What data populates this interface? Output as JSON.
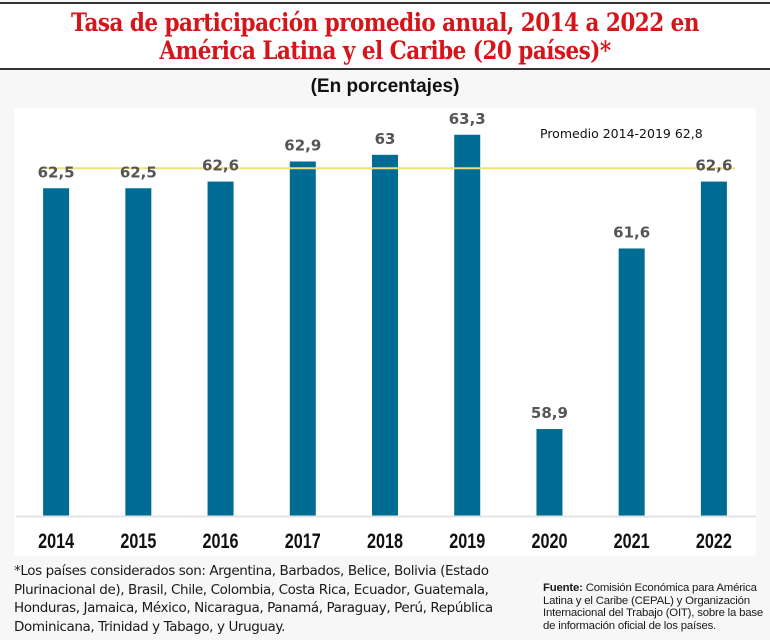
{
  "header": {
    "title_line1": "Tasa de participación promedio anual, 2014 a 2022 en",
    "title_line2": "América Latina y el Caribe (20 países)*",
    "subtitle": "(En porcentajes)"
  },
  "colors": {
    "title": "#d7141a",
    "bar": "#006c93",
    "average_line": "#f0e07a",
    "value_label": "#555555",
    "axis_label": "#111111"
  },
  "chart_data": {
    "type": "bar",
    "title": "Tasa de participación promedio anual, 2014 a 2022 en América Latina y el Caribe (20 países)*",
    "subtitle": "(En porcentajes)",
    "xlabel": "",
    "ylabel": "",
    "categories": [
      "2014",
      "2015",
      "2016",
      "2017",
      "2018",
      "2019",
      "2020",
      "2021",
      "2022"
    ],
    "values": [
      62.5,
      62.5,
      62.6,
      62.9,
      63,
      63.3,
      58.9,
      61.6,
      62.6
    ],
    "value_labels": [
      "62,5",
      "62,5",
      "62,6",
      "62,9",
      "63",
      "63,3",
      "58,9",
      "61,6",
      "62,6"
    ],
    "ylim": [
      57.6,
      63.7
    ],
    "grid": false,
    "reference_line": {
      "value": 62.8,
      "label": "Promedio 2014-2019 62,8"
    }
  },
  "footer": {
    "footnote": "*Los países considerados son: Argentina, Barbados, Belice, Bolivia (Estado Plurinacional de), Brasil, Chile, Colombia, Costa Rica, Ecuador, Guatemala, Honduras, Jamaica, México, Nicaragua, Panamá, Paraguay, Perú, República Dominicana, Trinidad y Tabago, y Uruguay.",
    "source_label": "Fuente:",
    "source_text": "Comisión Económica para América Latina y el Caribe (CEPAL) y Organización Internacional del Trabajo (OIT), sobre la base de información oficial de los países."
  }
}
